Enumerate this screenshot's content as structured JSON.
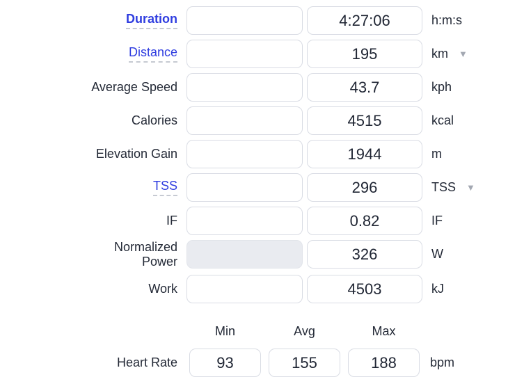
{
  "colors": {
    "link_blue": "#2F3DE0",
    "text_dark": "#232936",
    "value_text": "#1F2533",
    "input_border": "#D9DCE4",
    "disabled_input_bg": "#E9EBF0",
    "dashed_underline": "#C6CAD2",
    "dropdown_triangle": "#A3A8B2"
  },
  "icons": {
    "unit_dropdown": "▼"
  },
  "rows": [
    {
      "label": "Duration",
      "value": "4:27:06",
      "unit": "h:m:s"
    },
    {
      "label": "Distance",
      "value": "195",
      "unit": "km"
    },
    {
      "label": "Average Speed",
      "value": "43.7",
      "unit": "kph"
    },
    {
      "label": "Calories",
      "value": "4515",
      "unit": "kcal"
    },
    {
      "label": "Elevation Gain",
      "value": "1944",
      "unit": "m"
    },
    {
      "label": "TSS",
      "value": "296",
      "unit": "TSS"
    },
    {
      "label": "IF",
      "value": "0.82",
      "unit": "IF"
    },
    {
      "label": "Normalized Power",
      "value": "326",
      "unit": "W"
    },
    {
      "label": "Work",
      "value": "4503",
      "unit": "kJ"
    }
  ],
  "stats_header": {
    "min": "Min",
    "avg": "Avg",
    "max": "Max"
  },
  "stats_rows": [
    {
      "label": "Heart Rate",
      "min": "93",
      "avg": "155",
      "max": "188",
      "unit": "bpm"
    }
  ]
}
